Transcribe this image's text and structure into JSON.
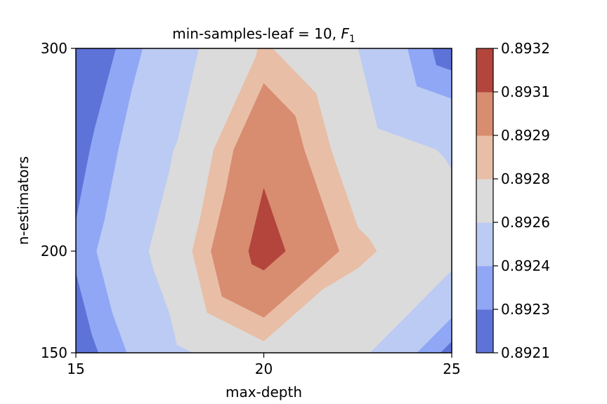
{
  "chart_data": {
    "type": "contourf",
    "title_main": "min-samples-leaf = 10, ",
    "title_var": "F",
    "title_sub": "1",
    "xlabel": "max-depth",
    "ylabel": "n-estimators",
    "xlim": [
      15,
      25
    ],
    "ylim": [
      150,
      300
    ],
    "x_ticks": [
      15,
      20,
      25
    ],
    "y_ticks": [
      150,
      200,
      300
    ],
    "x_tick_labels": [
      "15",
      "20",
      "25"
    ],
    "y_tick_labels": [
      "150",
      "200",
      "300"
    ],
    "colorbar": {
      "levels": [
        0.8921,
        0.8923,
        0.8924,
        0.8926,
        0.8928,
        0.8929,
        0.8931,
        0.8932
      ],
      "labels": [
        "0.8921",
        "0.8923",
        "0.8924",
        "0.8926",
        "0.8928",
        "0.8929",
        "0.8931",
        "0.8932"
      ],
      "colors": [
        "#5d73d8",
        "#8fa7f5",
        "#bccbf3",
        "#dbdbdb",
        "#e9bea6",
        "#d88c70",
        "#b3453d"
      ]
    },
    "grid": {
      "x": [
        15,
        17.5,
        20,
        22.5,
        25
      ],
      "y": [
        150,
        200,
        250,
        300
      ],
      "z": [
        [
          0.89222,
          0.89255,
          0.89275,
          0.89265,
          0.89225
        ],
        [
          0.89232,
          0.89268,
          0.89318,
          0.89283,
          0.89268
        ],
        [
          0.89225,
          0.89258,
          0.89305,
          0.8927,
          0.89258
        ],
        [
          0.89215,
          0.8925,
          0.89282,
          0.8926,
          0.89222
        ]
      ]
    }
  }
}
